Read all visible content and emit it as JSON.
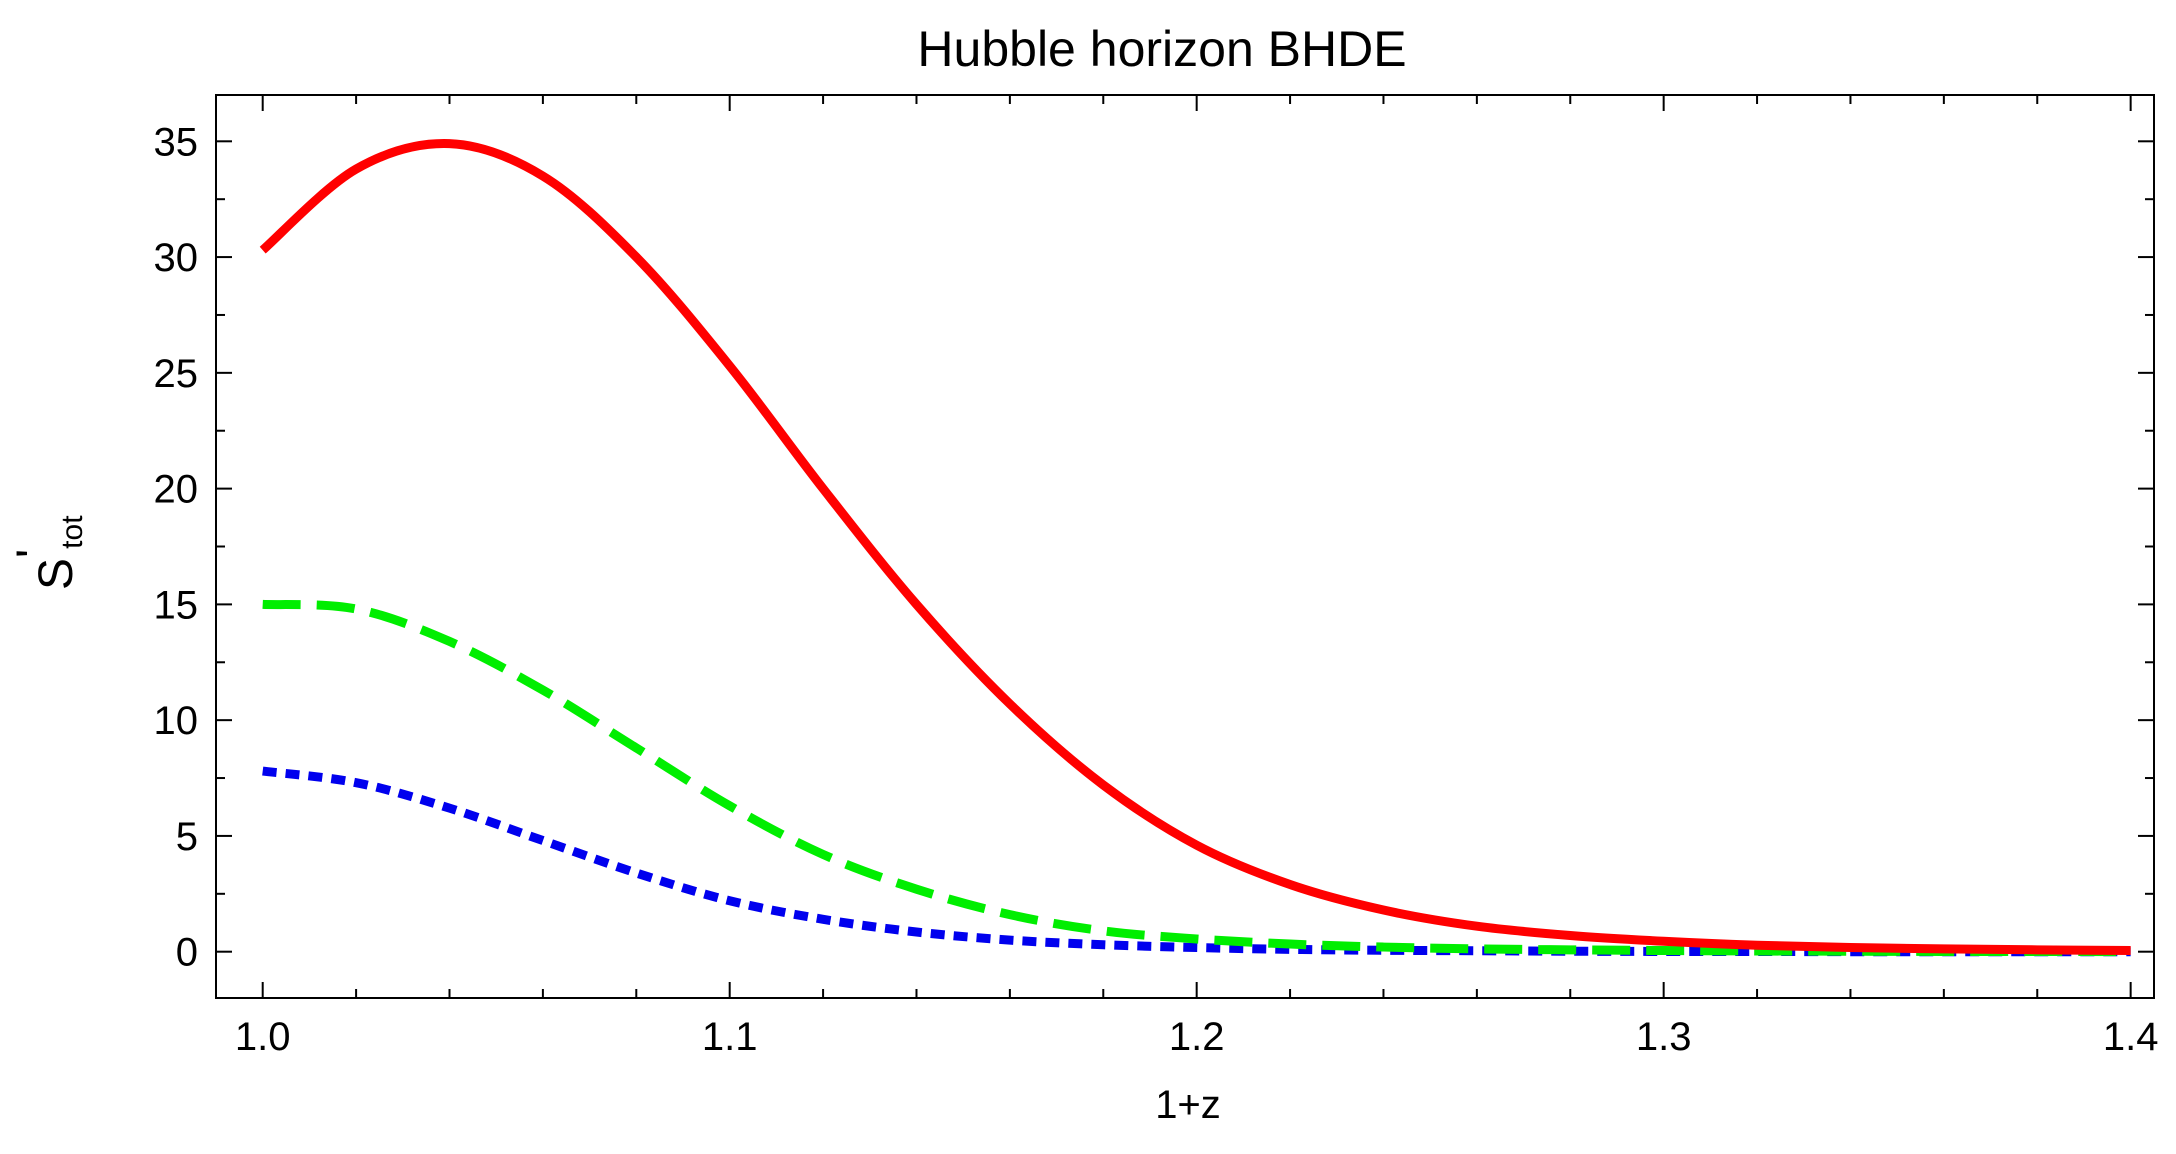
{
  "chart_data": {
    "type": "line",
    "title": "Hubble horizon BHDE",
    "xlabel": "1+z",
    "ylabel_main": "S",
    "ylabel_prime": "'",
    "ylabel_sub": "tot",
    "xlim": [
      0.99,
      1.405
    ],
    "ylim": [
      -2,
      37
    ],
    "x_ticks": [
      "1.0",
      "1.1",
      "1.2",
      "1.3",
      "1.4"
    ],
    "x_tick_values": [
      1.0,
      1.1,
      1.2,
      1.3,
      1.4
    ],
    "y_ticks": [
      "0",
      "5",
      "10",
      "15",
      "20",
      "25",
      "30",
      "35"
    ],
    "y_tick_values": [
      0,
      5,
      10,
      15,
      20,
      25,
      30,
      35
    ],
    "x": [
      1.0,
      1.02,
      1.04,
      1.06,
      1.08,
      1.1,
      1.12,
      1.14,
      1.16,
      1.18,
      1.2,
      1.22,
      1.24,
      1.26,
      1.28,
      1.3,
      1.32,
      1.34,
      1.36,
      1.38,
      1.4
    ],
    "series": [
      {
        "color": "#ff0000",
        "style": "solid",
        "values": [
          30.3,
          33.8,
          34.9,
          33.5,
          30.0,
          25.3,
          20.0,
          15.0,
          10.7,
          7.2,
          4.6,
          2.9,
          1.8,
          1.1,
          0.7,
          0.45,
          0.28,
          0.18,
          0.12,
          0.08,
          0.05
        ]
      },
      {
        "color": "#00ee00",
        "style": "dashed",
        "values": [
          15.0,
          14.8,
          13.4,
          11.3,
          8.8,
          6.3,
          4.2,
          2.7,
          1.6,
          0.9,
          0.55,
          0.33,
          0.2,
          0.12,
          0.08,
          0.05,
          0.03,
          0.02,
          0.01,
          0.01,
          0.0
        ]
      },
      {
        "color": "#0000ee",
        "style": "dotted",
        "values": [
          7.8,
          7.3,
          6.2,
          4.8,
          3.4,
          2.2,
          1.4,
          0.85,
          0.5,
          0.3,
          0.18,
          0.1,
          0.06,
          0.04,
          0.02,
          0.01,
          0.01,
          0.0,
          0.0,
          0.0,
          0.0
        ]
      }
    ],
    "grid": false,
    "legend": "none"
  }
}
